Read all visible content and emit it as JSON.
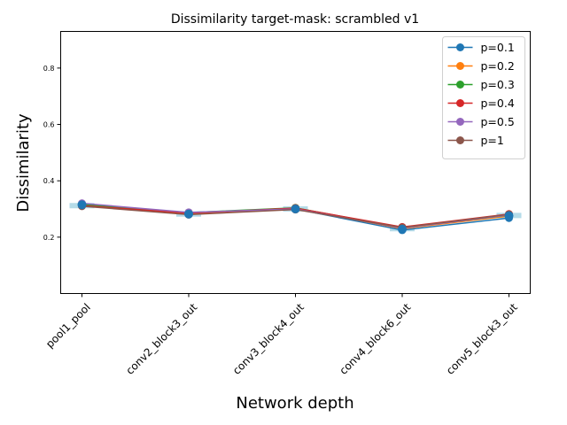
{
  "chart_data": {
    "type": "line",
    "title": "Dissimilarity target-mask: scrambled v1",
    "xlabel": "Network depth",
    "ylabel": "Dissimilarity",
    "categories": [
      "pool1_pool",
      "conv2_block3_out",
      "conv3_block4_out",
      "conv4_block6_out",
      "conv5_block3_out"
    ],
    "ylim": [
      0.0,
      0.93
    ],
    "yticks": [
      0.2,
      0.4,
      0.6,
      0.8
    ],
    "ytick_labels": [
      "0.2",
      "0.4",
      "0.6",
      "0.8"
    ],
    "grid": false,
    "legend_position": "top-right",
    "noise_band": {
      "color": "#add8e6",
      "values": [
        0.312,
        0.282,
        0.3,
        0.23,
        0.277
      ]
    },
    "series": [
      {
        "name": "p=0.1",
        "color": "#1f77b4",
        "values": [
          0.318,
          0.281,
          0.3,
          0.225,
          0.268
        ]
      },
      {
        "name": "p=0.2",
        "color": "#ff7f0e",
        "values": [
          0.314,
          0.283,
          0.302,
          0.23,
          0.275
        ]
      },
      {
        "name": "p=0.3",
        "color": "#2ca02c",
        "values": [
          0.316,
          0.287,
          0.304,
          0.233,
          0.278
        ]
      },
      {
        "name": "p=0.4",
        "color": "#d62728",
        "values": [
          0.312,
          0.285,
          0.303,
          0.236,
          0.282
        ]
      },
      {
        "name": "p=0.5",
        "color": "#9467bd",
        "values": [
          0.32,
          0.288,
          0.3,
          0.232,
          0.279
        ]
      },
      {
        "name": "p=1",
        "color": "#8c564b",
        "values": [
          0.31,
          0.28,
          0.298,
          0.234,
          0.281
        ]
      }
    ],
    "overlay_markers": {
      "color": "#1f77b4",
      "values": [
        0.315,
        0.282,
        0.3,
        0.228,
        0.276
      ]
    }
  }
}
